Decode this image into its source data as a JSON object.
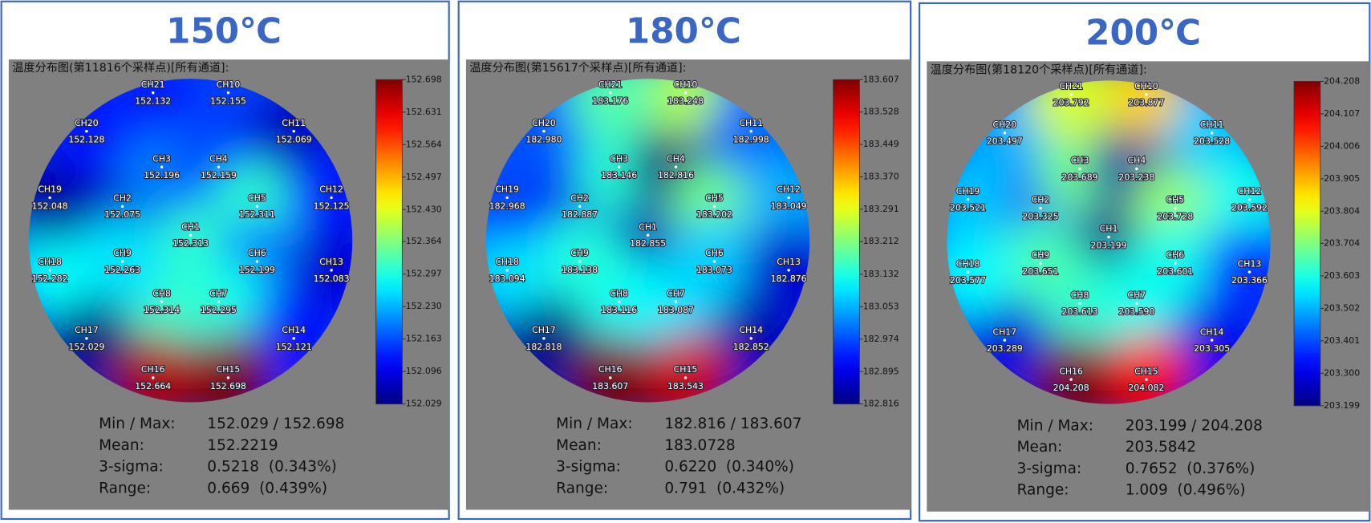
{
  "chart_data": [
    {
      "type": "wafer-map",
      "title": "150℃",
      "subtitle": "温度分布图(第11816个采样点)[所有通道]:",
      "categories": [
        "CH1",
        "CH2",
        "CH3",
        "CH4",
        "CH5",
        "CH6",
        "CH7",
        "CH8",
        "CH9",
        "CH10",
        "CH11",
        "CH12",
        "CH13",
        "CH14",
        "CH15",
        "CH16",
        "CH17",
        "CH18",
        "CH19",
        "CH20",
        "CH21"
      ],
      "values": [
        152.313,
        152.075,
        152.196,
        152.159,
        152.311,
        152.199,
        152.295,
        152.314,
        152.263,
        152.155,
        152.069,
        152.125,
        152.083,
        152.121,
        152.698,
        152.664,
        152.029,
        152.282,
        152.048,
        152.128,
        152.132
      ],
      "value_labels": [
        "152.313",
        "152.075",
        "152.196",
        "152.159",
        "152.311",
        "152.199",
        "152.295",
        "152.314",
        "152.263",
        "152.155",
        "152.069",
        "152.125",
        "152.083",
        "152.121",
        "152.698",
        "152.664",
        "152.029",
        "152.282",
        "152.048",
        "152.128",
        "152.132"
      ],
      "clim": [
        152.029,
        152.698
      ],
      "cticks": [
        152.698,
        152.631,
        152.564,
        152.497,
        {
          "value": 152.43,
          "label": "152.430"
        },
        152.364,
        152.297,
        {
          "value": 152.23,
          "label": "152.230"
        },
        152.163,
        152.096,
        152.029
      ],
      "stats": [
        {
          "label": "Min / Max:",
          "value": "152.029 / 152.698"
        },
        {
          "label": "Mean:",
          "value": "152.2219"
        },
        {
          "label": "3-sigma:",
          "value": "0.5218  (0.343%)"
        },
        {
          "label": "Range:",
          "value": "0.669  (0.439%)"
        }
      ]
    },
    {
      "type": "wafer-map",
      "title": "180℃",
      "subtitle": "温度分布图(第15617个采样点)[所有通道]:",
      "categories": [
        "CH1",
        "CH2",
        "CH3",
        "CH4",
        "CH5",
        "CH6",
        "CH7",
        "CH8",
        "CH9",
        "CH10",
        "CH11",
        "CH12",
        "CH13",
        "CH14",
        "CH15",
        "CH16",
        "CH17",
        "CH18",
        "CH19",
        "CH20",
        "CH21"
      ],
      "values": [
        182.855,
        182.887,
        183.146,
        182.816,
        183.202,
        183.073,
        183.087,
        183.116,
        183.138,
        183.248,
        182.998,
        183.049,
        182.876,
        182.852,
        183.543,
        183.607,
        182.818,
        183.094,
        182.968,
        182.98,
        183.176
      ],
      "value_labels": [
        "182.855",
        "182.887",
        "183.146",
        "182.816",
        "183.202",
        "183.073",
        "183.087",
        "183.116",
        "183.138",
        "183.248",
        "182.998",
        "183.049",
        "182.876",
        "182.852",
        "183.543",
        "183.607",
        "182.818",
        "183.094",
        "182.968",
        "182.980",
        "183.176"
      ],
      "clim": [
        182.816,
        183.607
      ],
      "cticks": [
        183.607,
        183.528,
        183.449,
        {
          "value": 183.37,
          "label": "183.370"
        },
        183.291,
        183.212,
        183.132,
        183.053,
        182.974,
        182.895,
        182.816
      ],
      "stats": [
        {
          "label": "Min / Max:",
          "value": "182.816 / 183.607"
        },
        {
          "label": "Mean:",
          "value": "183.0728"
        },
        {
          "label": "3-sigma:",
          "value": "0.6220  (0.340%)"
        },
        {
          "label": "Range:",
          "value": "0.791  (0.432%)"
        }
      ]
    },
    {
      "type": "wafer-map",
      "title": "200℃",
      "subtitle": "温度分布图(第18120个采样点)[所有通道]:",
      "categories": [
        "CH1",
        "CH2",
        "CH3",
        "CH4",
        "CH5",
        "CH6",
        "CH7",
        "CH8",
        "CH9",
        "CH10",
        "CH11",
        "CH12",
        "CH13",
        "CH14",
        "CH15",
        "CH16",
        "CH17",
        "CH18",
        "CH19",
        "CH20",
        "CH21"
      ],
      "values": [
        203.199,
        203.325,
        203.689,
        203.238,
        203.728,
        203.601,
        203.59,
        203.613,
        203.651,
        203.877,
        203.528,
        203.592,
        203.366,
        203.305,
        204.082,
        204.208,
        203.289,
        203.577,
        203.521,
        203.497,
        203.792
      ],
      "value_labels": [
        "203.199",
        "203.325",
        "203.689",
        "203.238",
        "203.728",
        "203.601",
        "203.590",
        "203.613",
        "203.651",
        "203.877",
        "203.528",
        "203.592",
        "203.366",
        "203.305",
        "204.082",
        "204.208",
        "203.289",
        "203.577",
        "203.521",
        "203.497",
        "203.792"
      ],
      "clim": [
        203.199,
        204.208
      ],
      "cticks": [
        204.208,
        204.107,
        204.006,
        203.905,
        203.804,
        203.704,
        203.603,
        203.502,
        203.401,
        {
          "value": 203.3,
          "label": "203.300"
        },
        203.199
      ],
      "stats": [
        {
          "label": "Min / Max:",
          "value": "203.199 / 204.208"
        },
        {
          "label": "Mean:",
          "value": "203.5842"
        },
        {
          "label": "3-sigma:",
          "value": "0.7652  (0.376%)"
        },
        {
          "label": "Range:",
          "value": "1.009  (0.496%)"
        }
      ]
    }
  ]
}
